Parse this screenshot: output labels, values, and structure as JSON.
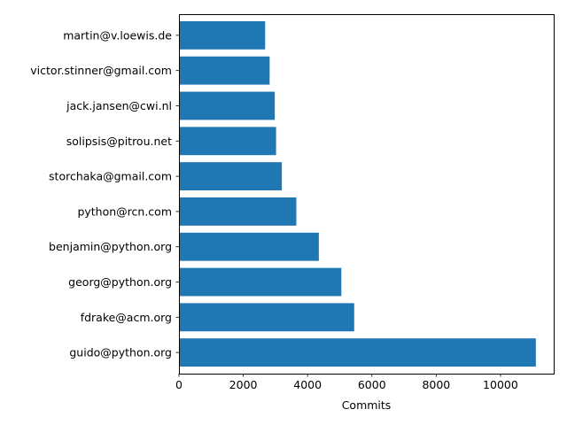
{
  "chart_data": {
    "type": "bar",
    "orientation": "horizontal",
    "categories": [
      "guido@python.org",
      "fdrake@acm.org",
      "georg@python.org",
      "benjamin@python.org",
      "python@rcn.com",
      "storchaka@gmail.com",
      "solipsis@pitrou.net",
      "jack.jansen@cwi.nl",
      "victor.stinner@gmail.com",
      "martin@v.loewis.de"
    ],
    "values": [
      11100,
      5450,
      5050,
      4350,
      3650,
      3200,
      3020,
      2980,
      2820,
      2680
    ],
    "title": "",
    "xlabel": "Commits",
    "ylabel": "",
    "xlim": [
      0,
      11655
    ],
    "xticks": [
      "0",
      "2000",
      "4000",
      "6000",
      "8000",
      "10000"
    ],
    "grid": false,
    "bar_color": "#1f77b4"
  }
}
